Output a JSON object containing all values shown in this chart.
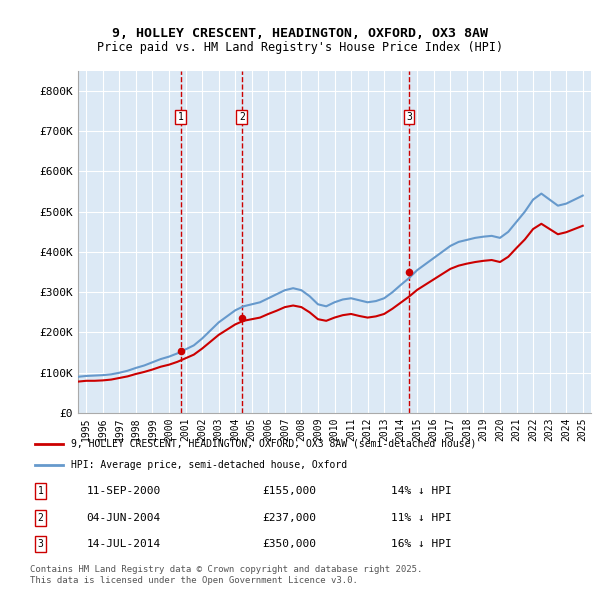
{
  "title_line1": "9, HOLLEY CRESCENT, HEADINGTON, OXFORD, OX3 8AW",
  "title_line2": "Price paid vs. HM Land Registry's House Price Index (HPI)",
  "ylabel": "",
  "background_color": "#ffffff",
  "plot_bg_color": "#dce9f5",
  "grid_color": "#ffffff",
  "red_line_color": "#cc0000",
  "blue_line_color": "#6699cc",
  "sale_marker_color": "#cc0000",
  "vline_color": "#cc0000",
  "purchases": [
    {
      "label": "1",
      "date_x": 2000.7,
      "price": 155000,
      "date_str": "11-SEP-2000",
      "pct": "14%",
      "direction": "↓"
    },
    {
      "label": "2",
      "date_x": 2004.4,
      "price": 237000,
      "date_str": "04-JUN-2004",
      "pct": "11%",
      "direction": "↓"
    },
    {
      "label": "3",
      "date_x": 2014.5,
      "price": 350000,
      "date_str": "14-JUL-2014",
      "pct": "16%",
      "direction": "↓"
    }
  ],
  "ylim": [
    0,
    850000
  ],
  "yticks": [
    0,
    100000,
    200000,
    300000,
    400000,
    500000,
    600000,
    700000,
    800000
  ],
  "ytick_labels": [
    "£0",
    "£100K",
    "£200K",
    "£300K",
    "£400K",
    "£500K",
    "£600K",
    "£700K",
    "£800K"
  ],
  "xlim": [
    1994.5,
    2025.5
  ],
  "xticks": [
    1995,
    1996,
    1997,
    1998,
    1999,
    2000,
    2001,
    2002,
    2003,
    2004,
    2005,
    2006,
    2007,
    2008,
    2009,
    2010,
    2011,
    2012,
    2013,
    2014,
    2015,
    2016,
    2017,
    2018,
    2019,
    2020,
    2021,
    2022,
    2023,
    2024,
    2025
  ],
  "legend_label_red": "9, HOLLEY CRESCENT, HEADINGTON, OXFORD, OX3 8AW (semi-detached house)",
  "legend_label_blue": "HPI: Average price, semi-detached house, Oxford",
  "footnote": "Contains HM Land Registry data © Crown copyright and database right 2025.\nThis data is licensed under the Open Government Licence v3.0.",
  "hpi_x": [
    1994.5,
    1995.0,
    1995.5,
    1996.0,
    1996.5,
    1997.0,
    1997.5,
    1998.0,
    1998.5,
    1999.0,
    1999.5,
    2000.0,
    2000.5,
    2001.0,
    2001.5,
    2002.0,
    2002.5,
    2003.0,
    2003.5,
    2004.0,
    2004.5,
    2005.0,
    2005.5,
    2006.0,
    2006.5,
    2007.0,
    2007.5,
    2008.0,
    2008.5,
    2009.0,
    2009.5,
    2010.0,
    2010.5,
    2011.0,
    2011.5,
    2012.0,
    2012.5,
    2013.0,
    2013.5,
    2014.0,
    2014.5,
    2015.0,
    2015.5,
    2016.0,
    2016.5,
    2017.0,
    2017.5,
    2018.0,
    2018.5,
    2019.0,
    2019.5,
    2020.0,
    2020.5,
    2021.0,
    2021.5,
    2022.0,
    2022.5,
    2023.0,
    2023.5,
    2024.0,
    2024.5,
    2025.0
  ],
  "hpi_y": [
    90000,
    92000,
    93000,
    94000,
    96000,
    100000,
    105000,
    112000,
    118000,
    126000,
    134000,
    140000,
    148000,
    158000,
    168000,
    185000,
    205000,
    225000,
    240000,
    255000,
    265000,
    270000,
    275000,
    285000,
    295000,
    305000,
    310000,
    305000,
    290000,
    270000,
    265000,
    275000,
    282000,
    285000,
    280000,
    275000,
    278000,
    285000,
    300000,
    318000,
    335000,
    355000,
    370000,
    385000,
    400000,
    415000,
    425000,
    430000,
    435000,
    438000,
    440000,
    435000,
    450000,
    475000,
    500000,
    530000,
    545000,
    530000,
    515000,
    520000,
    530000,
    540000
  ],
  "red_x": [
    1994.5,
    1995.0,
    1995.5,
    1996.0,
    1996.5,
    1997.0,
    1997.5,
    1998.0,
    1998.5,
    1999.0,
    1999.5,
    2000.0,
    2000.5,
    2001.0,
    2001.5,
    2002.0,
    2002.5,
    2003.0,
    2003.5,
    2004.0,
    2004.5,
    2005.0,
    2005.5,
    2006.0,
    2006.5,
    2007.0,
    2007.5,
    2008.0,
    2008.5,
    2009.0,
    2009.5,
    2010.0,
    2010.5,
    2011.0,
    2011.5,
    2012.0,
    2012.5,
    2013.0,
    2013.5,
    2014.0,
    2014.5,
    2015.0,
    2015.5,
    2016.0,
    2016.5,
    2017.0,
    2017.5,
    2018.0,
    2018.5,
    2019.0,
    2019.5,
    2020.0,
    2020.5,
    2021.0,
    2021.5,
    2022.0,
    2022.5,
    2023.0,
    2023.5,
    2024.0,
    2024.5,
    2025.0
  ],
  "red_y": [
    78000,
    80000,
    80000,
    81000,
    83000,
    87000,
    91000,
    97000,
    102000,
    108000,
    115000,
    120000,
    127000,
    136000,
    145000,
    160000,
    177000,
    194000,
    207000,
    220000,
    229000,
    233000,
    237000,
    246000,
    254000,
    263000,
    267000,
    263000,
    250000,
    233000,
    229000,
    237000,
    243000,
    246000,
    241000,
    237000,
    240000,
    246000,
    259000,
    274000,
    289000,
    306000,
    319000,
    332000,
    345000,
    358000,
    366000,
    371000,
    375000,
    378000,
    380000,
    375000,
    388000,
    410000,
    431000,
    457000,
    470000,
    457000,
    444000,
    449000,
    457000,
    465000
  ]
}
